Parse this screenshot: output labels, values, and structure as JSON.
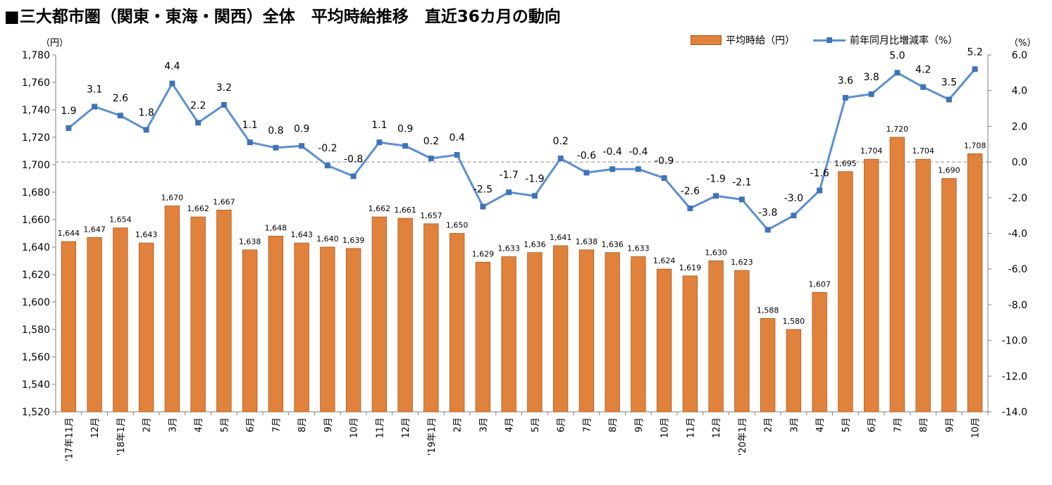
{
  "title": "■三大都市圏（関東・東海・関西）全体　平均時給推移　直近36カ月の動向",
  "left_unit": "（円）",
  "right_unit": "（%）",
  "colors": {
    "bar": "#e0823b",
    "bar_border": "#b05a1f",
    "line": "#5b8fd3",
    "marker": "#3f73b8"
  },
  "chart_data": {
    "type": "bar+line",
    "categories": [
      "'17年11月",
      "12月",
      "'18年1月",
      "2月",
      "3月",
      "4月",
      "5月",
      "6月",
      "7月",
      "8月",
      "9月",
      "10月",
      "11月",
      "12月",
      "'19年1月",
      "2月",
      "3月",
      "4月",
      "5月",
      "6月",
      "7月",
      "8月",
      "9月",
      "10月",
      "11月",
      "12月",
      "'20年1月",
      "2月",
      "3月",
      "4月",
      "5月",
      "6月",
      "7月",
      "8月",
      "9月",
      "10月"
    ],
    "series": [
      {
        "name": "平均時給（円）",
        "type": "bar",
        "axis": "left",
        "values": [
          1644,
          1647,
          1654,
          1643,
          1670,
          1662,
          1667,
          1638,
          1648,
          1643,
          1640,
          1639,
          1662,
          1661,
          1657,
          1650,
          1629,
          1633,
          1636,
          1641,
          1638,
          1636,
          1633,
          1624,
          1619,
          1630,
          1623,
          1588,
          1580,
          1607,
          1695,
          1704,
          1720,
          1704,
          1690,
          1708
        ]
      },
      {
        "name": "前年同月比増減率（%）",
        "type": "line",
        "axis": "right",
        "values": [
          1.9,
          3.1,
          2.6,
          1.8,
          4.4,
          2.2,
          3.2,
          1.1,
          0.8,
          0.9,
          -0.2,
          -0.8,
          1.1,
          0.9,
          0.2,
          0.4,
          -2.5,
          -1.7,
          -1.9,
          0.2,
          -0.6,
          -0.4,
          -0.4,
          -0.9,
          -2.6,
          -1.9,
          -2.1,
          -3.8,
          -3.0,
          -1.6,
          3.6,
          3.8,
          5.0,
          4.2,
          3.5,
          5.2
        ]
      }
    ],
    "left_axis": {
      "min": 1520,
      "max": 1780,
      "step": 20,
      "tick_labels": [
        "1,520",
        "1,540",
        "1,560",
        "1,580",
        "1,600",
        "1,620",
        "1,640",
        "1,660",
        "1,680",
        "1,700",
        "1,720",
        "1,740",
        "1,760",
        "1,780"
      ]
    },
    "right_axis": {
      "min": -14,
      "max": 6,
      "step": 2,
      "tick_labels": [
        "-14.0",
        "-12.0",
        "-10.0",
        "-8.0",
        "-6.0",
        "-4.0",
        "-2.0",
        "0.0",
        "2.0",
        "4.0",
        "6.0"
      ]
    },
    "zero_line": "dashed",
    "legend_position": "top-right"
  }
}
